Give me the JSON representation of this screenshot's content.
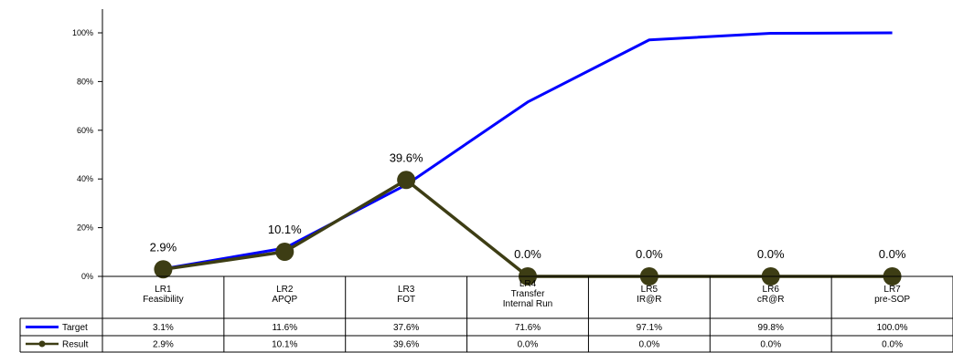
{
  "chart_data": {
    "type": "line",
    "categories": [
      [
        "LR1",
        "Feasibility"
      ],
      [
        "LR2",
        "APQP"
      ],
      [
        "LR3",
        "FOT"
      ],
      [
        "LR4",
        "Transfer",
        "Internal Run"
      ],
      [
        "LR5",
        "IR@R"
      ],
      [
        "LR6",
        "cR@R"
      ],
      [
        "LR7",
        "pre-SOP"
      ]
    ],
    "yticks": [
      "0%",
      "20%",
      "40%",
      "60%",
      "80%",
      "100%"
    ],
    "ylim": [
      0,
      100
    ],
    "grid": false,
    "legend": "bottom-table",
    "series": [
      {
        "name": "Target",
        "color": "#0000ff",
        "values": [
          3.1,
          11.6,
          37.6,
          71.6,
          97.1,
          99.8,
          100.0
        ],
        "labels": [
          "3.1%",
          "11.6%",
          "37.6%",
          "71.6%",
          "97.1%",
          "99.8%",
          "100.0%"
        ]
      },
      {
        "name": "Result",
        "color": "#3d3d14",
        "values": [
          2.9,
          10.1,
          39.6,
          0.0,
          0.0,
          0.0,
          0.0
        ],
        "labels": [
          "2.9%",
          "10.1%",
          "39.6%",
          "0.0%",
          "0.0%",
          "0.0%",
          "0.0%"
        ]
      }
    ]
  }
}
